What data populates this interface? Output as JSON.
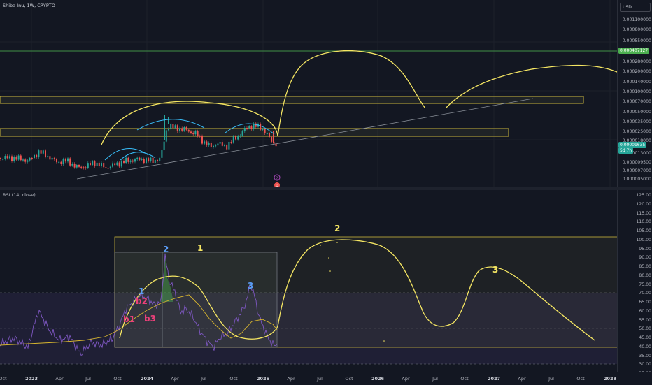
{
  "header": {
    "symbol": "Shiba Inu, 1W, CRYPTO"
  },
  "currency_button": "USD",
  "price_scale": {
    "ticks": [
      "0.001600000",
      "0.001100000",
      "0.000800000",
      "0.000550000",
      "0.000400000",
      "0.000280000",
      "0.000200000",
      "0.000140000",
      "0.000100000",
      "0.000070000",
      "0.000050000",
      "0.000035000",
      "0.000025000",
      "0.000018000",
      "0.000013000",
      "0.000009500",
      "0.000007000",
      "0.000005000"
    ],
    "level_badge": "0.000407127",
    "current_price": "0.00001635",
    "countdown": "5d 7h"
  },
  "rsi": {
    "title": "RSI (14, close)",
    "ticks": [
      "125.00",
      "120.00",
      "115.00",
      "110.00",
      "105.00",
      "100.00",
      "95.00",
      "90.00",
      "85.00",
      "80.00",
      "75.00",
      "70.00",
      "65.00",
      "60.00",
      "55.00",
      "50.00",
      "45.00",
      "40.00",
      "35.00",
      "30.00",
      "25.00"
    ]
  },
  "time_axis": [
    {
      "label": "Oct",
      "year": false
    },
    {
      "label": "2023",
      "year": true
    },
    {
      "label": "Apr",
      "year": false
    },
    {
      "label": "Jul",
      "year": false
    },
    {
      "label": "Oct",
      "year": false
    },
    {
      "label": "2024",
      "year": true
    },
    {
      "label": "Apr",
      "year": false
    },
    {
      "label": "Jul",
      "year": false
    },
    {
      "label": "Oct",
      "year": false
    },
    {
      "label": "2025",
      "year": true
    },
    {
      "label": "Apr",
      "year": false
    },
    {
      "label": "Jul",
      "year": false
    },
    {
      "label": "Oct",
      "year": false
    },
    {
      "label": "2026",
      "year": true
    },
    {
      "label": "Apr",
      "year": false
    },
    {
      "label": "Jul",
      "year": false
    },
    {
      "label": "Oct",
      "year": false
    },
    {
      "label": "2027",
      "year": true
    },
    {
      "label": "Apr",
      "year": false
    },
    {
      "label": "Jul",
      "year": false
    },
    {
      "label": "Oct",
      "year": false
    },
    {
      "label": "2028",
      "year": true
    }
  ],
  "annotations": {
    "wave_1": "1",
    "wave_2_top": "2",
    "wave_3": "3",
    "peak_2": "2",
    "peak_3": "3",
    "small_1": "1",
    "b1": "b1",
    "b2": "b2",
    "b3": "b3"
  },
  "colors": {
    "background": "#131722",
    "annotation_yellow": "#f5e663",
    "cup_blue": "#38bdf8",
    "wave_blue": "#5b9cf6",
    "b_pink": "#ec407a",
    "rsi_line": "#7e57c2",
    "rsi_ma": "#e6c229",
    "level_green": "#4caf50",
    "up_candle": "#26a69a",
    "down_candle": "#ef5350"
  },
  "icons": [
    "event-flag-icon",
    "dividends-icon"
  ]
}
